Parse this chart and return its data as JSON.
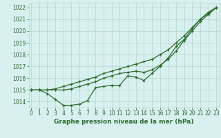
{
  "xlabel": "Graphe pression niveau de la mer (hPa)",
  "bg_color": "#d8f0f0",
  "grid_color": "#b0d8c8",
  "line_color": "#2d6b2d",
  "marker": "+",
  "x": [
    0,
    1,
    2,
    3,
    4,
    5,
    6,
    7,
    8,
    9,
    10,
    11,
    12,
    13,
    14,
    15,
    16,
    17,
    18,
    19,
    20,
    21,
    22,
    23
  ],
  "line1": [
    1015.0,
    1015.0,
    1014.7,
    1014.2,
    1013.7,
    1013.7,
    1013.8,
    1014.1,
    1015.2,
    1015.3,
    1015.4,
    1015.4,
    1016.2,
    1016.1,
    1015.8,
    1016.4,
    1017.0,
    1017.7,
    1018.7,
    1019.3,
    1020.2,
    1021.0,
    1021.6,
    1022.0
  ],
  "line2": [
    1015.0,
    1015.0,
    1015.0,
    1015.1,
    1015.3,
    1015.5,
    1015.7,
    1015.9,
    1016.1,
    1016.4,
    1016.6,
    1016.8,
    1017.0,
    1017.2,
    1017.4,
    1017.6,
    1018.0,
    1018.4,
    1019.0,
    1019.6,
    1020.3,
    1021.0,
    1021.5,
    1022.0
  ],
  "line3": [
    1015.0,
    1015.0,
    1015.0,
    1015.0,
    1015.0,
    1015.1,
    1015.3,
    1015.5,
    1015.7,
    1016.0,
    1016.2,
    1016.4,
    1016.5,
    1016.6,
    1016.5,
    1016.7,
    1017.1,
    1017.6,
    1018.3,
    1019.2,
    1020.0,
    1020.8,
    1021.4,
    1022.0
  ],
  "ylim_min": 1013.5,
  "ylim_max": 1022.4,
  "yticks": [
    1014,
    1015,
    1016,
    1017,
    1018,
    1019,
    1020,
    1021,
    1022
  ],
  "xticks": [
    0,
    1,
    2,
    3,
    4,
    5,
    6,
    7,
    8,
    9,
    10,
    11,
    12,
    13,
    14,
    15,
    16,
    17,
    18,
    19,
    20,
    21,
    22,
    23
  ],
  "tick_fontsize": 5.5,
  "xlabel_fontsize": 6.5,
  "lw": 0.9,
  "markersize": 2.5,
  "markeredgewidth": 0.9
}
